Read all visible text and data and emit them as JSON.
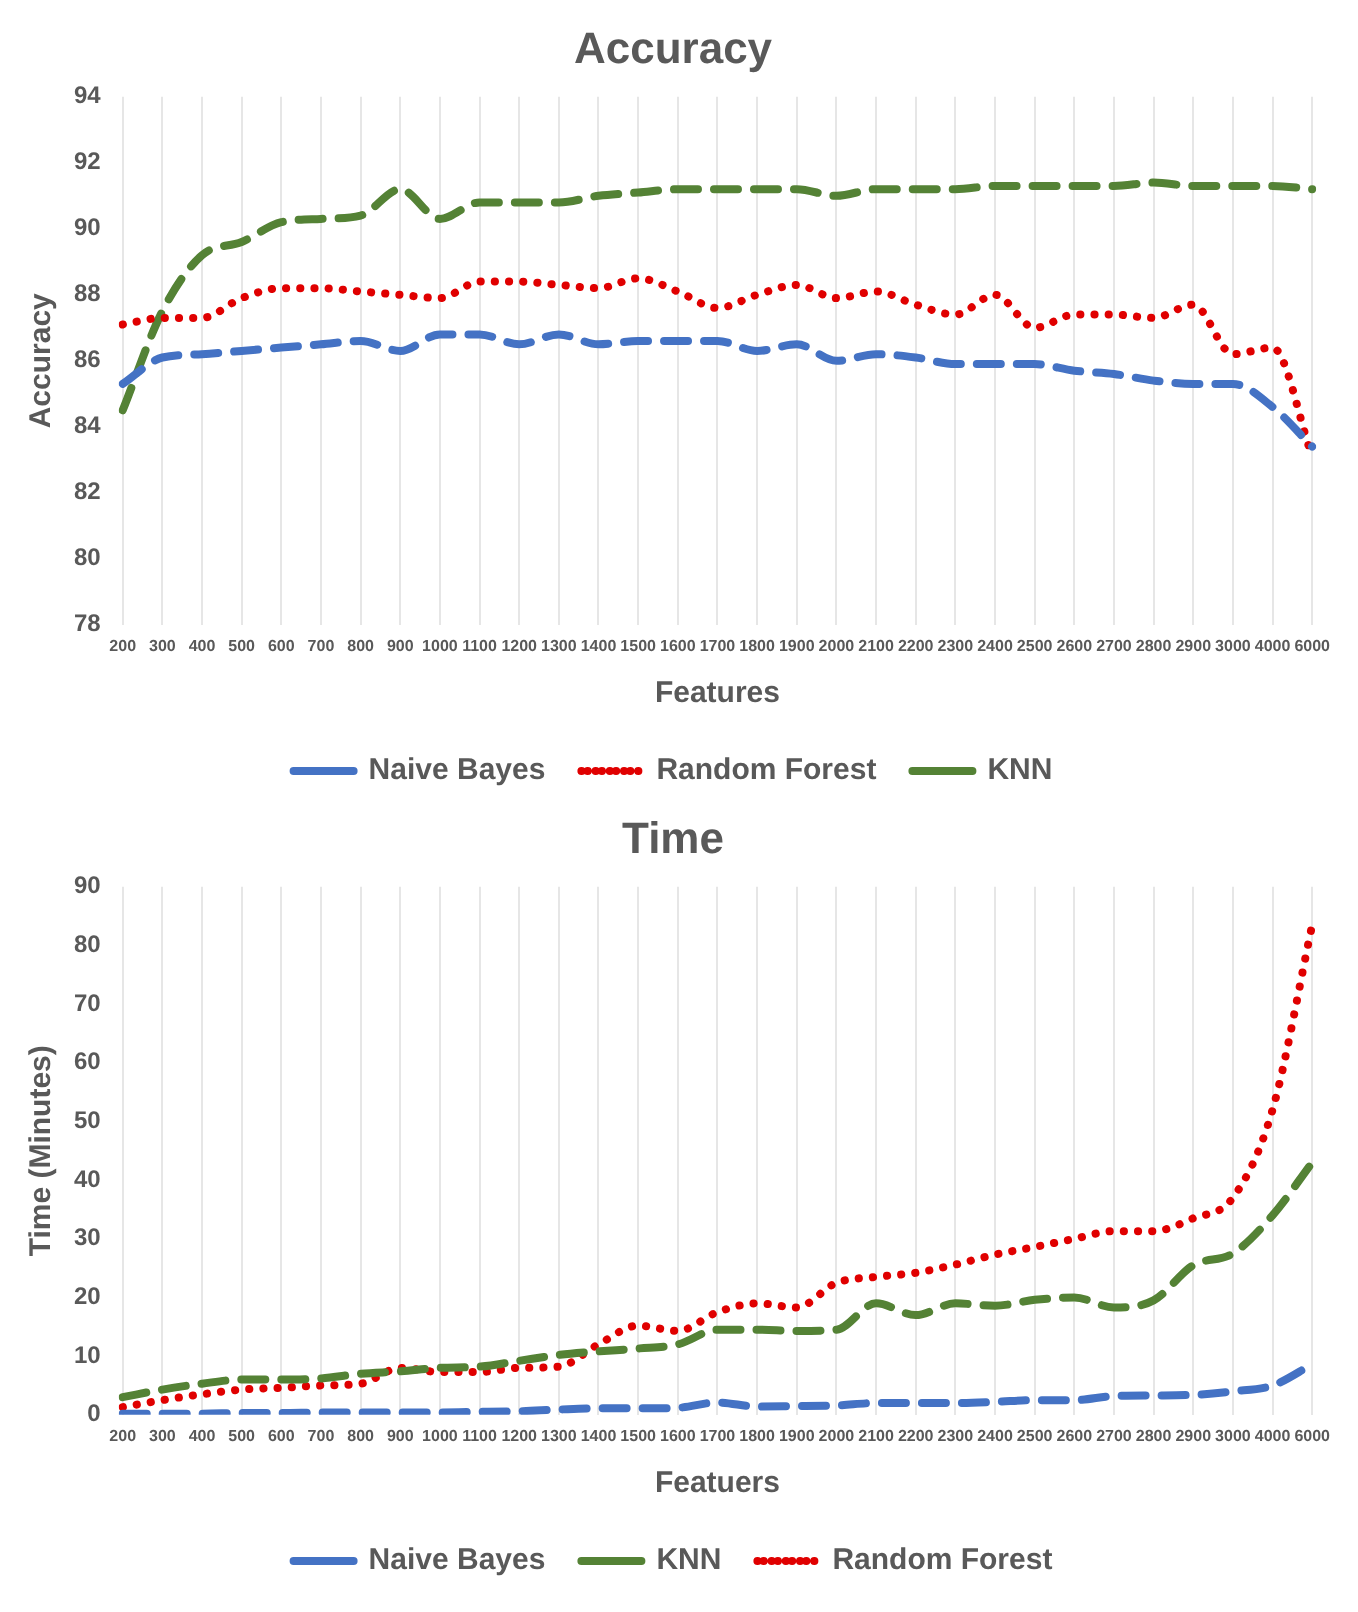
{
  "chart_data": [
    {
      "type": "line",
      "title": "Accuracy",
      "xlabel": "Features",
      "ylabel": "Accuracy",
      "categories": [
        "200",
        "300",
        "400",
        "500",
        "600",
        "700",
        "800",
        "900",
        "1000",
        "1100",
        "1200",
        "1300",
        "1400",
        "1500",
        "1600",
        "1700",
        "1800",
        "1900",
        "2000",
        "2100",
        "2200",
        "2300",
        "2400",
        "2500",
        "2600",
        "2700",
        "2800",
        "2900",
        "3000",
        "4000",
        "6000"
      ],
      "ylim": [
        78,
        94
      ],
      "yticks": [
        78,
        80,
        82,
        84,
        86,
        88,
        90,
        92,
        94
      ],
      "grid": "x",
      "legend": "bottom",
      "marker": "none",
      "series": [
        {
          "name": "Naive Bayes",
          "color": "#4472c4",
          "line_style": "dashed",
          "values": [
            85.3,
            86.1,
            86.2,
            86.3,
            86.4,
            86.5,
            86.6,
            86.3,
            86.8,
            86.8,
            86.5,
            86.8,
            86.5,
            86.6,
            86.6,
            86.6,
            86.3,
            86.5,
            86.0,
            86.2,
            86.1,
            85.9,
            85.9,
            85.9,
            85.7,
            85.6,
            85.4,
            85.3,
            85.3,
            84.6,
            83.4
          ]
        },
        {
          "name": "Random Forest",
          "color": "#e00000",
          "line_style": "dotted",
          "values": [
            87.1,
            87.3,
            87.3,
            87.9,
            88.2,
            88.2,
            88.1,
            88.0,
            87.9,
            88.4,
            88.4,
            88.3,
            88.2,
            88.5,
            88.1,
            87.6,
            88.0,
            88.3,
            87.9,
            88.1,
            87.7,
            87.4,
            88.0,
            87.0,
            87.4,
            87.4,
            87.3,
            87.7,
            86.2,
            86.4,
            83.1
          ]
        },
        {
          "name": "KNN",
          "color": "#548235",
          "line_style": "dashed",
          "values": [
            84.5,
            87.5,
            89.2,
            89.6,
            90.2,
            90.3,
            90.4,
            91.2,
            90.3,
            90.8,
            90.8,
            90.8,
            91.0,
            91.1,
            91.2,
            91.2,
            91.2,
            91.2,
            91.0,
            91.2,
            91.2,
            91.2,
            91.3,
            91.3,
            91.3,
            91.3,
            91.4,
            91.3,
            91.3,
            91.3,
            91.2
          ]
        }
      ]
    },
    {
      "type": "line",
      "title": "Time",
      "xlabel": "Featuers",
      "ylabel": "Time (Minutes)",
      "categories": [
        "200",
        "300",
        "400",
        "500",
        "600",
        "700",
        "800",
        "900",
        "1000",
        "1100",
        "1200",
        "1300",
        "1400",
        "1500",
        "1600",
        "1700",
        "1800",
        "1900",
        "2000",
        "2100",
        "2200",
        "2300",
        "2400",
        "2500",
        "2600",
        "2700",
        "2800",
        "2900",
        "3000",
        "4000",
        "6000"
      ],
      "ylim": [
        0,
        90
      ],
      "yticks": [
        0,
        10,
        20,
        30,
        40,
        50,
        60,
        70,
        80,
        90
      ],
      "grid": "x",
      "legend": "bottom",
      "marker": "none",
      "series": [
        {
          "name": "Naive Bayes",
          "color": "#4472c4",
          "line_style": "dashed",
          "values": [
            0.2,
            0.2,
            0.2,
            0.3,
            0.3,
            0.4,
            0.4,
            0.4,
            0.4,
            0.5,
            0.6,
            0.9,
            1.1,
            1.1,
            1.2,
            2.1,
            1.4,
            1.5,
            1.6,
            2,
            2,
            2,
            2.2,
            2.5,
            2.5,
            3.2,
            3.3,
            3.4,
            4,
            5,
            8.6
          ]
        },
        {
          "name": "KNN",
          "color": "#548235",
          "line_style": "dashed",
          "values": [
            3,
            4.3,
            5.3,
            6,
            6,
            6.2,
            7,
            7.4,
            8,
            8.2,
            9.2,
            10.2,
            10.8,
            11.3,
            12,
            14.5,
            14.5,
            14.3,
            14.5,
            19,
            17,
            19,
            18.6,
            19.6,
            20,
            18.3,
            19.5,
            25.5,
            27.5,
            34,
            43
          ]
        },
        {
          "name": "Random Forest",
          "color": "#e00000",
          "line_style": "dotted",
          "values": [
            1.3,
            2.5,
            3.5,
            4.3,
            4.6,
            5,
            5.3,
            8,
            7.3,
            7.3,
            8,
            8.2,
            12,
            15.2,
            14.3,
            17.5,
            19,
            18.3,
            22.5,
            23.5,
            24.2,
            25.6,
            27.3,
            28.6,
            30,
            31.3,
            31.3,
            33.5,
            37,
            52,
            83.5
          ]
        }
      ]
    }
  ]
}
